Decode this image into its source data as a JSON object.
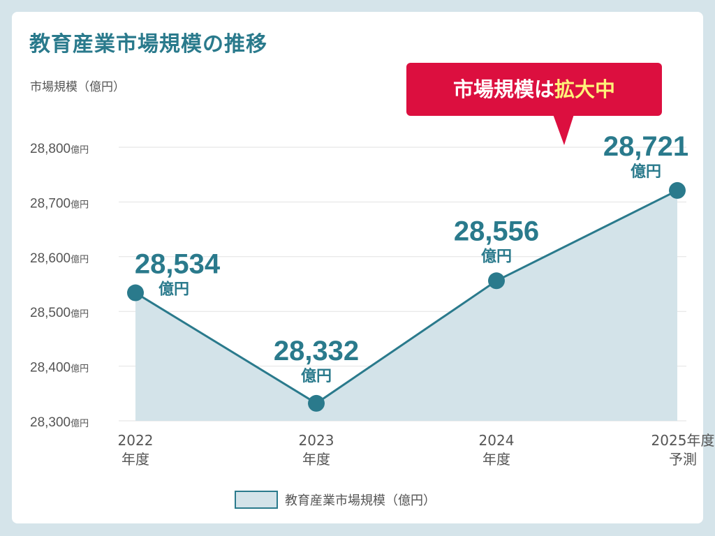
{
  "title": "教育産業市場規模の推移",
  "callout": {
    "text": "市場規模は",
    "highlight": "拡大中"
  },
  "colors": {
    "line": "#2a7a8c",
    "fill": "#d3e3e9",
    "callout": "#dc0f3f",
    "highlight": "#fff27a",
    "background": "#d5e4ea"
  },
  "chart_data": {
    "type": "area",
    "ylabel": "市場規模（億円）",
    "categories": [
      [
        "2022",
        "年度"
      ],
      [
        "2023",
        "年度"
      ],
      [
        "2024",
        "年度"
      ],
      [
        "2025年度",
        "予測"
      ]
    ],
    "values": [
      28534,
      28332,
      28556,
      28721
    ],
    "data_labels": [
      "28,534",
      "28,332",
      "28,556",
      "28,721"
    ],
    "data_label_unit": "億円",
    "ylim": [
      28300,
      28800
    ],
    "yticks": [
      28300,
      28400,
      28500,
      28600,
      28700,
      28800
    ],
    "ytick_labels": [
      "28,300",
      "28,400",
      "28,500",
      "28,600",
      "28,700",
      "28,800"
    ],
    "ytick_unit": "億円",
    "grid": true,
    "legend": {
      "label": "教育産業市場規模（億円）",
      "placement": "bottom"
    }
  }
}
